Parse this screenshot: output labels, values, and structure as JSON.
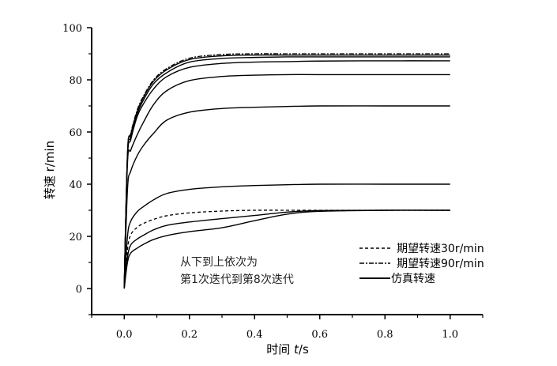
{
  "chart_data": {
    "type": "line",
    "title": "",
    "xlabel_prefix": "时间 ",
    "xlabel_var": "t",
    "xlabel_unit": "/s",
    "ylabel": "转速 r/min",
    "xlim": [
      -0.1,
      1.1
    ],
    "ylim": [
      -10,
      100
    ],
    "xticks": [
      0.0,
      0.2,
      0.4,
      0.6,
      0.8,
      1.0
    ],
    "xtick_labels": [
      "0.0",
      "0.2",
      "0.4",
      "0.6",
      "0.8",
      "1.0"
    ],
    "yticks": [
      0,
      20,
      40,
      60,
      80,
      100
    ],
    "ytick_labels": [
      "0",
      "20",
      "40",
      "60",
      "80",
      "100"
    ],
    "grid": false,
    "legend_position": "bottom-right",
    "legend": [
      {
        "label": "期望转速30r/min",
        "style": "dashed"
      },
      {
        "label": "期望转速90r/min",
        "style": "dash-dot"
      },
      {
        "label": "仿真转速",
        "style": "solid"
      }
    ],
    "annotation": [
      "从下到上依次为",
      "第1次迭代到第8次迭代"
    ],
    "x": [
      0,
      0.01,
      0.02,
      0.04,
      0.06,
      0.09,
      0.13,
      0.2,
      0.3,
      0.4,
      0.5,
      0.6,
      0.8,
      1.0
    ],
    "series": [
      {
        "name": "期望转速30r/min",
        "style": "dashed",
        "values": [
          0,
          15,
          20.6,
          23.5,
          25,
          26.5,
          27.9,
          29,
          29.7,
          30,
          30,
          30,
          30,
          30
        ]
      },
      {
        "name": "期望转速90r/min",
        "style": "dash-dot",
        "values": [
          0,
          52,
          59.5,
          68.5,
          74,
          80,
          84.3,
          88.3,
          89.7,
          90,
          90,
          90,
          90,
          90
        ]
      },
      {
        "style": "solid",
        "values": [
          0,
          10,
          13.6,
          15.5,
          17,
          18.8,
          20.3,
          21.8,
          23.3,
          26,
          28.5,
          29.6,
          30,
          30
        ]
      },
      {
        "style": "solid",
        "values": [
          0,
          12,
          16.7,
          19,
          20.5,
          22.5,
          24.2,
          25.5,
          26.8,
          28,
          29.3,
          29.9,
          30,
          30
        ]
      },
      {
        "style": "solid",
        "values": [
          0,
          20,
          25.8,
          29.5,
          31.5,
          34,
          36.4,
          38,
          39,
          39.5,
          39.8,
          40,
          40,
          40
        ]
      },
      {
        "style": "solid",
        "values": [
          0,
          38,
          45,
          51,
          55,
          59.5,
          64.5,
          67.6,
          69,
          69.5,
          69.8,
          70,
          70,
          70
        ]
      },
      {
        "style": "solid",
        "values": [
          0,
          48,
          53,
          59,
          64,
          70.5,
          75.8,
          79.7,
          81.3,
          81.8,
          82,
          82,
          82,
          82
        ]
      },
      {
        "style": "solid",
        "values": [
          0,
          50,
          57,
          66,
          71,
          76.5,
          81.2,
          84.8,
          86.3,
          86.8,
          87,
          87.2,
          87.3,
          87.3
        ]
      },
      {
        "style": "solid",
        "values": [
          0,
          51,
          58,
          67,
          72.5,
          78.5,
          82.7,
          86.8,
          88.2,
          88.6,
          88.8,
          88.8,
          88.8,
          88.8
        ]
      },
      {
        "style": "solid",
        "values": [
          0,
          52,
          59,
          68,
          73.5,
          79.5,
          83.8,
          87.8,
          89.2,
          89.5,
          89.5,
          89.5,
          89.5,
          89.5
        ]
      }
    ]
  }
}
